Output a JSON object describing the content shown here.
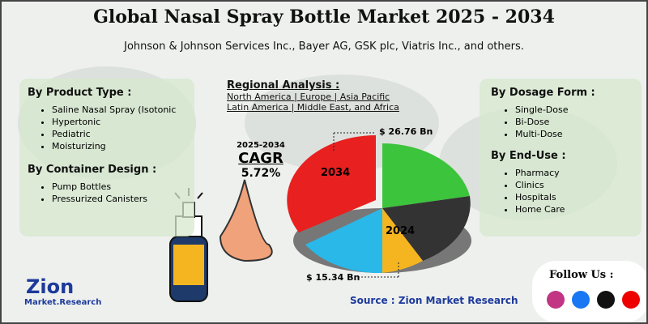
{
  "header": {
    "title": "Global Nasal Spray Bottle Market 2025 - 2034",
    "subtitle": "Johnson & Johnson Services Inc., Bayer AG, GSK plc, Viatris Inc., and others."
  },
  "left": {
    "product_type": {
      "heading": "By Product Type :",
      "items": [
        "Saline Nasal Spray (Isotonic",
        "Hypertonic",
        "Pediatric",
        "Moisturizing"
      ]
    },
    "container_design": {
      "heading": "By Container Design :",
      "items": [
        "Pump Bottles",
        "Pressurized Canisters"
      ]
    }
  },
  "regional": {
    "heading": "Regional Analysis :",
    "lines": [
      "North America | Europe | Asia Pacific",
      "Latin America | Middle East, and Africa"
    ]
  },
  "cagr": {
    "period": "2025-2034",
    "label": "CAGR",
    "value": "5.72%"
  },
  "pie": {
    "label_2034": "2034",
    "value_2034": "$ 26.76 Bn",
    "label_2024": "2024",
    "value_2024": "$ 15.34 Bn"
  },
  "right": {
    "dosage_form": {
      "heading": "By Dosage Form :",
      "items": [
        "Single-Dose",
        "Bi-Dose",
        "Multi-Dose"
      ]
    },
    "end_use": {
      "heading": "By End-Use :",
      "items": [
        "Pharmacy",
        "Clinics",
        "Hospitals",
        "Home Care"
      ]
    }
  },
  "source": "Source : Zion Market Research",
  "follow": "Follow Us :",
  "logo": {
    "name": "Zion",
    "tagline": "Market.Research"
  }
}
